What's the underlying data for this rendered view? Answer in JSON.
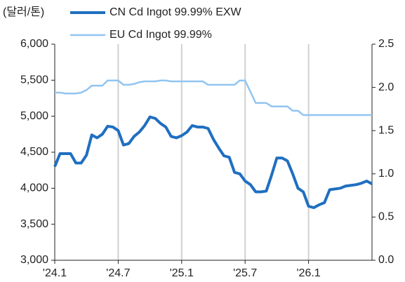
{
  "chart_data": {
    "type": "line",
    "ylabel": "(달러/톤)",
    "categories": [
      "'24.1",
      null,
      null,
      null,
      null,
      null,
      null,
      null,
      null,
      null,
      null,
      null,
      "'24.7",
      null,
      null,
      null,
      null,
      null,
      null,
      null,
      null,
      null,
      null,
      null,
      "'25.1",
      null,
      null,
      null,
      null,
      null,
      null,
      null,
      null,
      null,
      null,
      null,
      "'25.7",
      null,
      null,
      null,
      null,
      null,
      null,
      null,
      null,
      null,
      null,
      null,
      "'26.1",
      null,
      null,
      null,
      null,
      null,
      null,
      null,
      null,
      null,
      null,
      null,
      null
    ],
    "series": [
      {
        "name": "CN Cd Ingot 99.99% EXW",
        "color": "#1f6fc0",
        "axis": "y",
        "values": [
          4300,
          4480,
          4480,
          4480,
          4350,
          4350,
          4460,
          4740,
          4700,
          4750,
          4860,
          4850,
          4800,
          4600,
          4620,
          4720,
          4780,
          4870,
          4990,
          4970,
          4900,
          4850,
          4720,
          4700,
          4730,
          4780,
          4870,
          4850,
          4850,
          4830,
          4680,
          4560,
          4450,
          4430,
          4220,
          4200,
          4100,
          4050,
          3950,
          3950,
          3960,
          4180,
          4420,
          4420,
          4380,
          4200,
          4000,
          3950,
          3750,
          3730,
          3770,
          3800,
          3980,
          3990,
          4000,
          4030,
          4040,
          4050,
          4070,
          4100,
          4060
        ]
      },
      {
        "name": "EU Cd Ingot 99.99%",
        "color": "#92c5f0",
        "axis": "y2",
        "values": [
          1.94,
          1.94,
          1.93,
          1.93,
          1.93,
          1.94,
          1.97,
          2.02,
          2.02,
          2.02,
          2.08,
          2.08,
          2.08,
          2.03,
          2.03,
          2.04,
          2.06,
          2.07,
          2.07,
          2.07,
          2.08,
          2.08,
          2.07,
          2.07,
          2.07,
          2.07,
          2.07,
          2.07,
          2.07,
          2.03,
          2.03,
          2.03,
          2.03,
          2.03,
          2.03,
          2.08,
          2.08,
          1.95,
          1.82,
          1.82,
          1.82,
          1.78,
          1.78,
          1.78,
          1.78,
          1.73,
          1.73,
          1.68,
          1.68,
          1.68,
          1.68,
          1.68,
          1.68,
          1.68,
          1.68,
          1.68,
          1.68,
          1.68,
          1.68,
          1.68,
          1.68
        ]
      }
    ],
    "ylim": [
      3000,
      6000
    ],
    "yticks": [
      {
        "value": 3000,
        "label": "3,000"
      },
      {
        "value": 3500,
        "label": "3,500"
      },
      {
        "value": 4000,
        "label": "4,000"
      },
      {
        "value": 4500,
        "label": "4,500"
      },
      {
        "value": 5000,
        "label": "5,000"
      },
      {
        "value": 5500,
        "label": "5,500"
      },
      {
        "value": 6000,
        "label": "6,000"
      }
    ],
    "y2lim": [
      0,
      2.5
    ],
    "y2ticks": [
      {
        "value": 0,
        "label": "0.0"
      },
      {
        "value": 0.5,
        "label": "0.5"
      },
      {
        "value": 1,
        "label": "1.0"
      },
      {
        "value": 1.5,
        "label": "1.5"
      },
      {
        "value": 2,
        "label": "2.0"
      },
      {
        "value": 2.5,
        "label": "2.5"
      }
    ],
    "grid": "x"
  }
}
